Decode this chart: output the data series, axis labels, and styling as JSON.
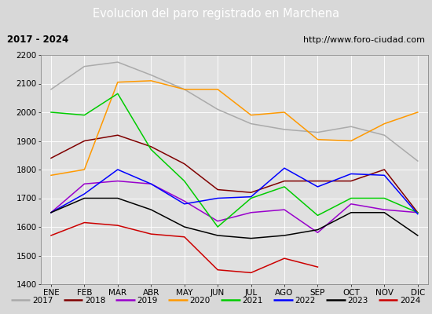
{
  "title": "Evolucion del paro registrado en Marchena",
  "subtitle_left": "2017 - 2024",
  "subtitle_right": "http://www.foro-ciudad.com",
  "months": [
    "ENE",
    "FEB",
    "MAR",
    "ABR",
    "MAY",
    "JUN",
    "JUL",
    "AGO",
    "SEP",
    "OCT",
    "NOV",
    "DIC"
  ],
  "series": {
    "2017": {
      "color": "#aaaaaa",
      "data": [
        2080,
        2160,
        2175,
        2130,
        2080,
        2010,
        1960,
        1940,
        1930,
        1950,
        1920,
        1830
      ]
    },
    "2018": {
      "color": "#800000",
      "data": [
        1840,
        1900,
        1920,
        1880,
        1820,
        1730,
        1720,
        1760,
        1760,
        1760,
        1800,
        1650
      ]
    },
    "2019": {
      "color": "#9900cc",
      "data": [
        1650,
        1750,
        1760,
        1750,
        1690,
        1620,
        1650,
        1660,
        1580,
        1680,
        1660,
        1650
      ]
    },
    "2020": {
      "color": "#ff9900",
      "data": [
        1780,
        1800,
        2105,
        2110,
        2080,
        2080,
        1990,
        2000,
        1905,
        1900,
        1960,
        2000
      ]
    },
    "2021": {
      "color": "#00cc00",
      "data": [
        2000,
        1990,
        2065,
        1870,
        1760,
        1600,
        1700,
        1740,
        1640,
        1700,
        1700,
        1650
      ]
    },
    "2022": {
      "color": "#0000ff",
      "data": [
        1650,
        1715,
        1800,
        1750,
        1680,
        1700,
        1705,
        1805,
        1740,
        1785,
        1780,
        1645
      ]
    },
    "2023": {
      "color": "#000000",
      "data": [
        1650,
        1700,
        1700,
        1660,
        1600,
        1570,
        1560,
        1570,
        1590,
        1650,
        1650,
        1570
      ]
    },
    "2024": {
      "color": "#cc0000",
      "data": [
        1570,
        1615,
        1605,
        1575,
        1565,
        1450,
        1440,
        1490,
        1460,
        null,
        null,
        null
      ]
    }
  },
  "ylim": [
    1400,
    2200
  ],
  "yticks": [
    1400,
    1500,
    1600,
    1700,
    1800,
    1900,
    2000,
    2100,
    2200
  ],
  "bg_color": "#d8d8d8",
  "plot_bg_color": "#e0e0e0",
  "title_bg_color": "#4080c0",
  "title_text_color": "#ffffff",
  "header_bg_color": "#f0f0f0"
}
